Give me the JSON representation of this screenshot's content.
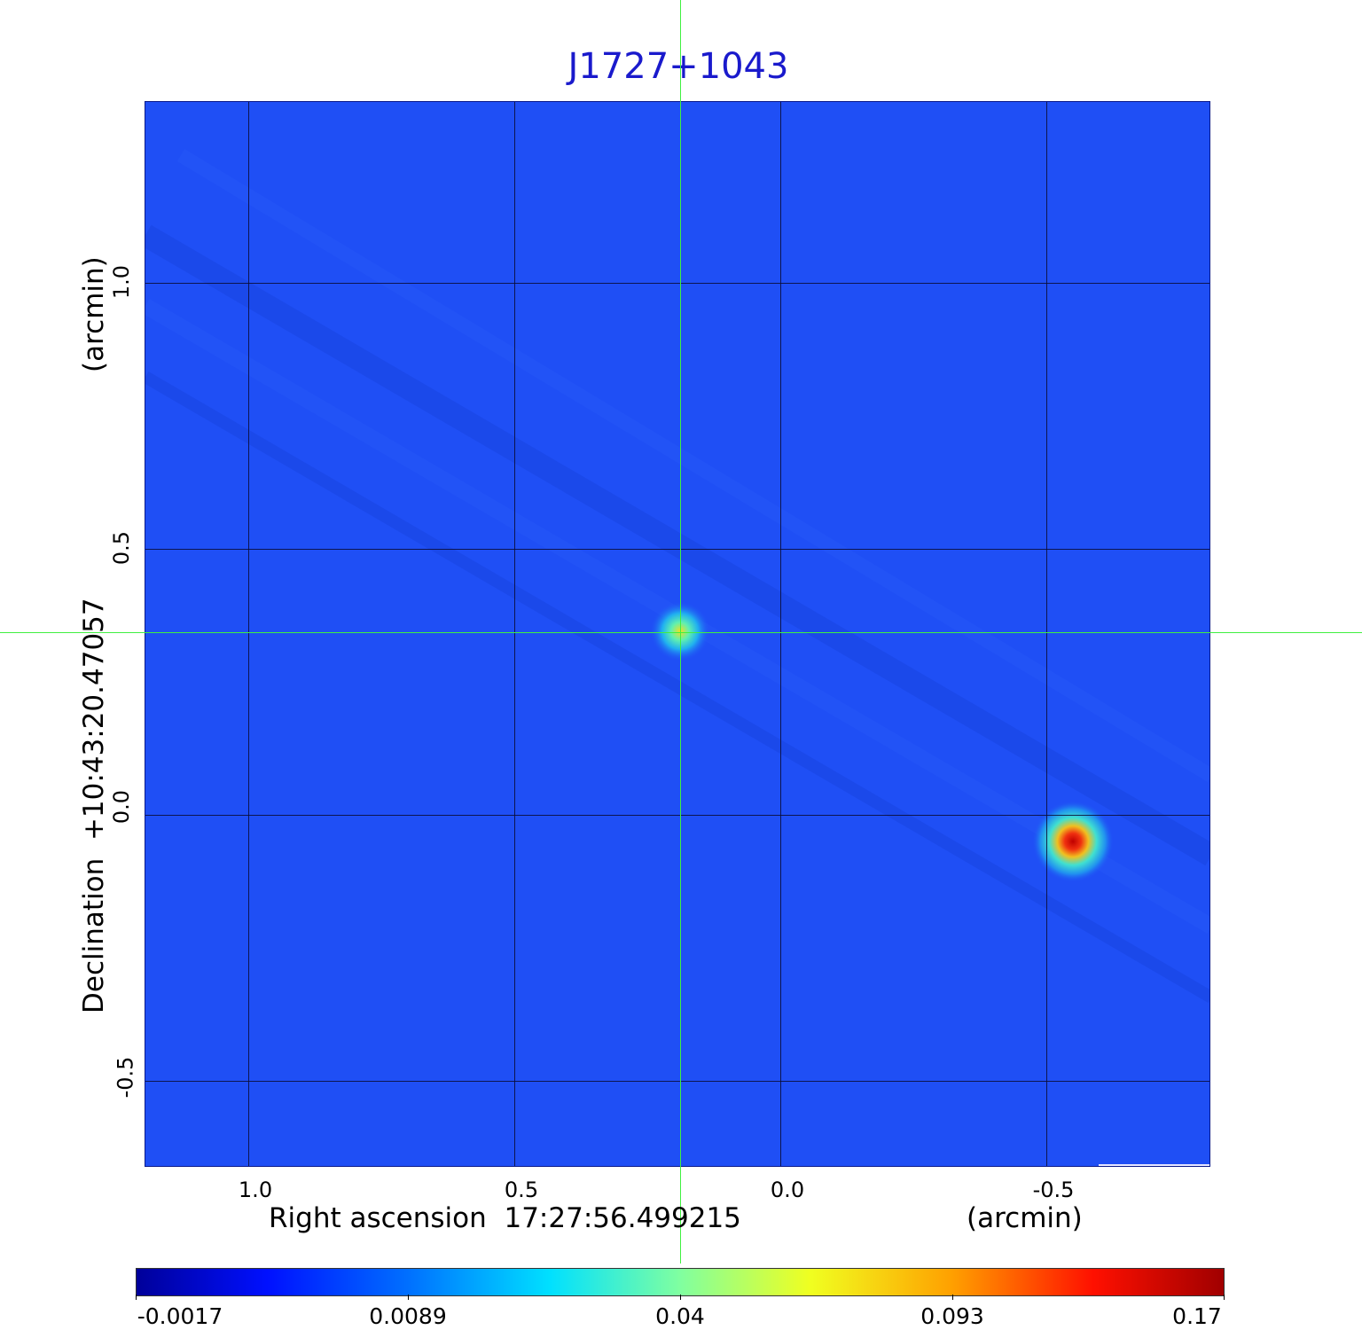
{
  "title": "J1727+1043",
  "xaxis": {
    "label": "Right ascension  17:27:56.499215",
    "unit": "(arcmin)",
    "ticks": [
      "1.0",
      "0.5",
      "0.0",
      "-0.5"
    ]
  },
  "yaxis": {
    "label": "Declination  +10:43:20.47057",
    "unit": "(arcmin)",
    "ticks": [
      "1.0",
      "0.5",
      "0.0",
      "-0.5"
    ]
  },
  "colorbar": {
    "ticks": [
      "-0.0017",
      "0.0089",
      "0.04",
      "0.093",
      "0.17"
    ],
    "colormap": "jet"
  },
  "crosshair_color": "#40f040",
  "sources": [
    {
      "ra_arcmin": 0.19,
      "dec_arcmin": 0.34,
      "peak": 0.06
    },
    {
      "ra_arcmin": -0.55,
      "dec_arcmin": -0.05,
      "peak": 0.17
    }
  ]
}
